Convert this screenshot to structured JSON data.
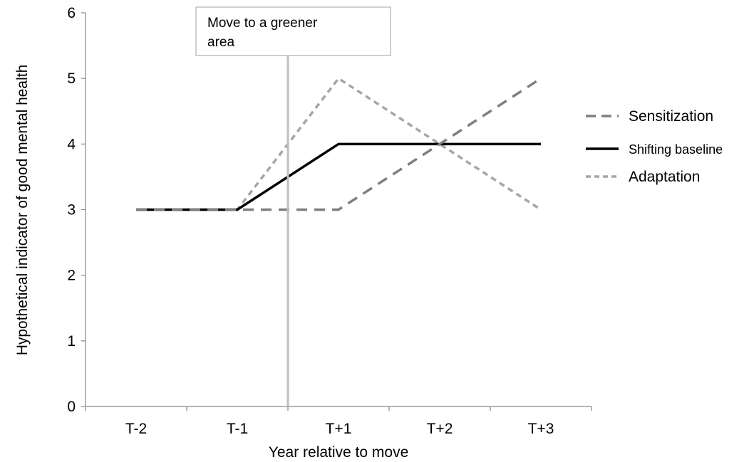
{
  "chart_data": {
    "type": "line",
    "title": "",
    "xlabel": "Year relative to move",
    "ylabel": "Hypothetical indicator of good mental health",
    "categories": [
      "T-2",
      "T-1",
      "T+1",
      "T+2",
      "T+3"
    ],
    "ylim": [
      0,
      6
    ],
    "yticks": [
      0,
      1,
      2,
      3,
      4,
      5,
      6
    ],
    "grid": false,
    "legend_position": "right",
    "series": [
      {
        "name": "Sensitization",
        "values": [
          3,
          3,
          3,
          4,
          5
        ],
        "color": "#7f7f7f",
        "style": "long-dash"
      },
      {
        "name": "Shifting baseline",
        "values": [
          3,
          3,
          4,
          4,
          4
        ],
        "color": "#000000",
        "style": "solid"
      },
      {
        "name": "Adaptation",
        "values": [
          3,
          3,
          5,
          4,
          3
        ],
        "color": "#a6a6a6",
        "style": "short-dash"
      }
    ],
    "annotation": {
      "text_lines": [
        "Move to a greener",
        "area"
      ],
      "between": [
        "T-1",
        "T+1"
      ],
      "line_color": "#bfbfbf"
    }
  }
}
